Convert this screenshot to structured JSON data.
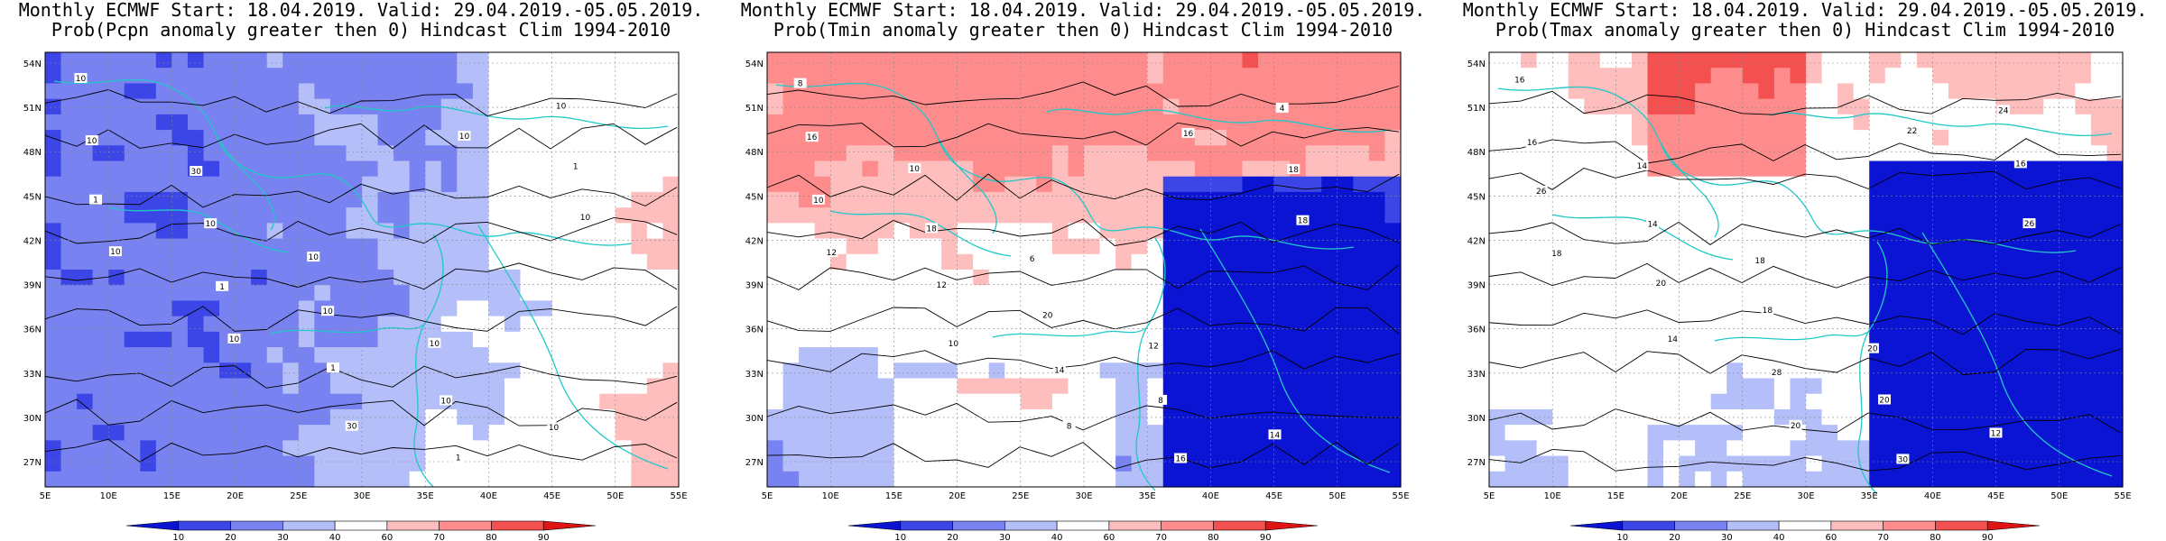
{
  "panels": [
    {
      "id": "pcpn",
      "title_line1": "Monthly ECMWF Start: 18.04.2019. Valid: 29.04.2019.-05.05.2019.",
      "title_line2": "Prob(Pcpn anomaly greater then 0) Hindcast Clim 1994-2010",
      "contour_labels": [
        "10",
        "30",
        "10",
        "10",
        "10",
        "10",
        "10",
        "10",
        "10",
        "10",
        "1",
        "1",
        "1",
        "1",
        "1",
        "10",
        "10",
        "30",
        "10",
        "10"
      ]
    },
    {
      "id": "tmin",
      "title_line1": "Monthly ECMWF Start: 18.04.2019. Valid: 29.04.2019.-05.05.2019.",
      "title_line2": "Prob(Tmin anomaly greater then 0) Hindcast Clim 1994-2010",
      "contour_labels": [
        "8",
        "10",
        "6",
        "12",
        "14",
        "16",
        "18",
        "20",
        "8",
        "4",
        "10",
        "12",
        "14",
        "16",
        "18",
        "12",
        "10",
        "8",
        "16",
        "18"
      ]
    },
    {
      "id": "tmax",
      "title_line1": "Monthly ECMWF Start: 18.04.2019. Valid: 29.04.2019.-05.05.2019.",
      "title_line2": "Prob(Tmax anomaly greater then 0) Hindcast Clim 1994-2010",
      "contour_labels": [
        "16",
        "14",
        "18",
        "20",
        "12",
        "16",
        "14",
        "18",
        "20",
        "24",
        "26",
        "20",
        "28",
        "30",
        "16",
        "18",
        "14",
        "20",
        "22",
        "26"
      ]
    }
  ],
  "map_axes": {
    "lat_labels": [
      "54N",
      "51N",
      "48N",
      "45N",
      "42N",
      "39N",
      "36N",
      "33N",
      "30N",
      "27N"
    ],
    "lon_labels": [
      "5E",
      "10E",
      "15E",
      "20E",
      "25E",
      "30E",
      "35E",
      "40E",
      "45E",
      "50E",
      "55E"
    ]
  },
  "colorbar": {
    "labels": [
      "10",
      "20",
      "30",
      "40",
      "60",
      "70",
      "80",
      "90"
    ],
    "colors": [
      "#0a14d2",
      "#3c46e6",
      "#7882f0",
      "#b4bef8",
      "#ffffff",
      "#ffbebe",
      "#ff8c8c",
      "#f55050",
      "#e11414"
    ]
  }
}
